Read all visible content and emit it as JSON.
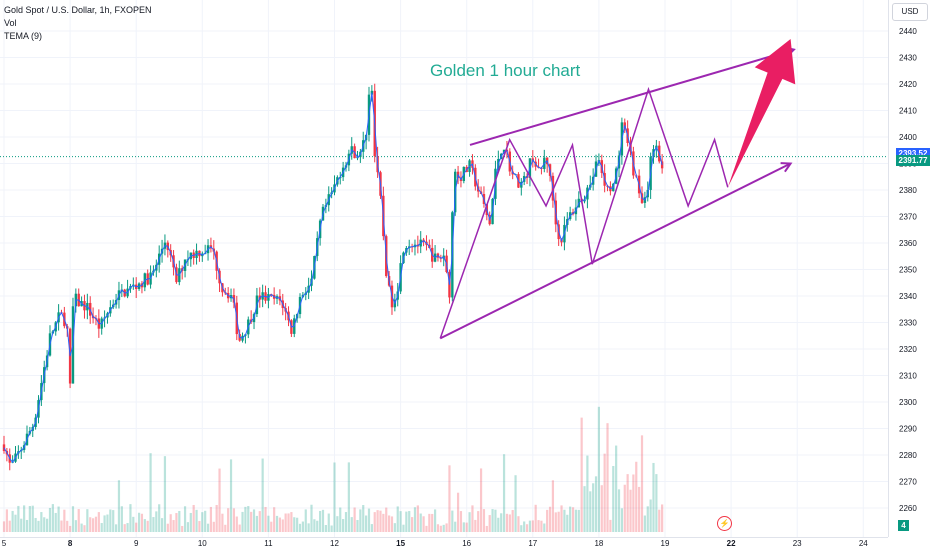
{
  "legend": {
    "symbol": "Gold Spot / U.S. Dollar, 1h, FXOPEN",
    "vol": "Vol",
    "indicator": "TEMA (9)"
  },
  "currency_button": "USD",
  "annotation": "Golden 1 hour chart",
  "price_tags": [
    {
      "label": "2393.52",
      "price": 2393.52,
      "color": "#2962ff"
    },
    {
      "label": "2391.77",
      "price": 2391.77,
      "color": "#089981"
    }
  ],
  "corner_badge": "4",
  "colors": {
    "up": "#089981",
    "down": "#f23645",
    "tema": "#2962ff",
    "pattern": "#9c27b0",
    "arrow": "#e91e63",
    "annotation": "#22ab94"
  },
  "chart_data": {
    "type": "candlestick",
    "title": "Gold Spot / U.S. Dollar, 1h, FXOPEN",
    "annotation": "Golden 1 hour chart",
    "x_ticks": [
      "5",
      "8",
      "9",
      "10",
      "11",
      "12",
      "15",
      "16",
      "17",
      "18",
      "19",
      "22",
      "23",
      "24"
    ],
    "y_ticks": [
      2260,
      2270,
      2280,
      2290,
      2300,
      2310,
      2320,
      2330,
      2340,
      2350,
      2360,
      2370,
      2380,
      2390,
      2400,
      2410,
      2420,
      2430,
      2440
    ],
    "ylim": [
      2255,
      2445
    ],
    "x_range_days": [
      0,
      13.5
    ],
    "x_tick_days": [
      0,
      1,
      2,
      3,
      4,
      5,
      6,
      7,
      8,
      9,
      10,
      11,
      12,
      13
    ],
    "gap_after_day": 6.0,
    "price_path": [
      [
        0.0,
        2284
      ],
      [
        0.1,
        2275
      ],
      [
        0.25,
        2282
      ],
      [
        0.45,
        2292
      ],
      [
        0.6,
        2312
      ],
      [
        0.7,
        2325
      ],
      [
        0.85,
        2333
      ],
      [
        0.95,
        2330
      ],
      [
        1.0,
        2305
      ],
      [
        1.05,
        2340
      ],
      [
        1.1,
        2338
      ],
      [
        1.25,
        2336
      ],
      [
        1.45,
        2328
      ],
      [
        1.55,
        2333
      ],
      [
        1.7,
        2340
      ],
      [
        1.85,
        2342
      ],
      [
        2.0,
        2344
      ],
      [
        2.25,
        2348
      ],
      [
        2.45,
        2362
      ],
      [
        2.6,
        2345
      ],
      [
        2.75,
        2355
      ],
      [
        2.95,
        2357
      ],
      [
        3.15,
        2358
      ],
      [
        3.3,
        2343
      ],
      [
        3.45,
        2340
      ],
      [
        3.55,
        2323
      ],
      [
        3.7,
        2330
      ],
      [
        3.85,
        2340
      ],
      [
        4.0,
        2339
      ],
      [
        4.2,
        2338
      ],
      [
        4.35,
        2327
      ],
      [
        4.5,
        2341
      ],
      [
        4.65,
        2345
      ],
      [
        4.8,
        2370
      ],
      [
        4.95,
        2378
      ],
      [
        5.1,
        2388
      ],
      [
        5.25,
        2395
      ],
      [
        5.4,
        2393
      ],
      [
        5.5,
        2405
      ],
      [
        5.55,
        2430
      ],
      [
        5.6,
        2395
      ],
      [
        5.7,
        2375
      ],
      [
        5.78,
        2350
      ],
      [
        5.85,
        2337
      ],
      [
        5.95,
        2343
      ],
      [
        6.05,
        2360
      ],
      [
        6.2,
        2360
      ],
      [
        6.4,
        2358
      ],
      [
        6.55,
        2353
      ],
      [
        6.65,
        2356
      ],
      [
        6.75,
        2340
      ],
      [
        6.8,
        2388
      ],
      [
        6.9,
        2385
      ],
      [
        7.05,
        2389
      ],
      [
        7.2,
        2378
      ],
      [
        7.35,
        2367
      ],
      [
        7.45,
        2390
      ],
      [
        7.55,
        2398
      ],
      [
        7.7,
        2385
      ],
      [
        7.85,
        2382
      ],
      [
        8.0,
        2393
      ],
      [
        8.1,
        2385
      ],
      [
        8.2,
        2394
      ],
      [
        8.3,
        2377
      ],
      [
        8.4,
        2360
      ],
      [
        8.55,
        2370
      ],
      [
        8.7,
        2376
      ],
      [
        8.85,
        2381
      ],
      [
        9.0,
        2392
      ],
      [
        9.1,
        2379
      ],
      [
        9.2,
        2381
      ],
      [
        9.3,
        2390
      ],
      [
        9.35,
        2405
      ],
      [
        9.45,
        2395
      ],
      [
        9.55,
        2385
      ],
      [
        9.65,
        2375
      ],
      [
        9.75,
        2381
      ],
      [
        9.8,
        2399
      ],
      [
        9.9,
        2393
      ],
      [
        9.98,
        2387
      ]
    ],
    "tema_line": true,
    "volume_max_day": 9.3,
    "drawings": {
      "channel_upper": [
        [
          7.05,
          2397
        ],
        [
          11.95,
          2433
        ]
      ],
      "channel_lower": [
        [
          6.6,
          2324
        ],
        [
          11.9,
          2390
        ]
      ],
      "zigzag": [
        [
          6.6,
          2324
        ],
        [
          7.65,
          2399
        ],
        [
          8.2,
          2374
        ],
        [
          8.6,
          2397
        ],
        [
          8.9,
          2352
        ],
        [
          9.75,
          2418
        ],
        [
          10.35,
          2374
        ],
        [
          10.75,
          2399
        ],
        [
          10.95,
          2381
        ]
      ],
      "projection_arrow": [
        [
          10.95,
          2381
        ],
        [
          11.9,
          2437
        ]
      ]
    }
  }
}
